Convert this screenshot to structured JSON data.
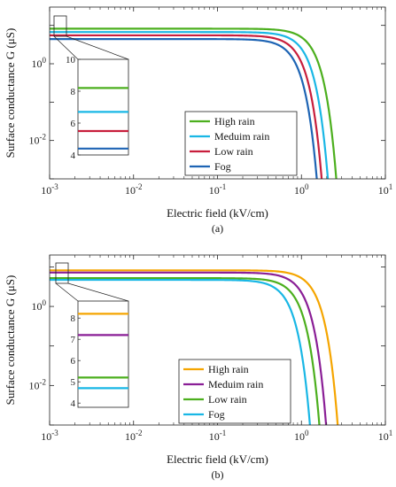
{
  "chart_data": [
    {
      "type": "line",
      "panel_label": "(a)",
      "xlabel": "Electric field (kV/cm)",
      "ylabel": "Surface conductance G (μS)",
      "xscale": "log",
      "yscale": "log",
      "xlim": [
        0.001,
        10
      ],
      "ylim": [
        0.001,
        30
      ],
      "x_ticks": [
        0.001,
        0.01,
        0.1,
        1,
        10
      ],
      "x_tick_labels": [
        [
          "10",
          "-3"
        ],
        [
          "10",
          "-2"
        ],
        [
          "10",
          "-1"
        ],
        [
          "10",
          "0"
        ],
        [
          "10",
          "1"
        ]
      ],
      "y_ticks": [
        0.01,
        1
      ],
      "y_tick_labels": [
        [
          "10",
          "-2"
        ],
        [
          "10",
          "0"
        ]
      ],
      "legend_position": "bottom-right",
      "series": [
        {
          "name": "High rain",
          "color": "#4caf1e",
          "g0": 8.2,
          "knee": 1.25,
          "exp": 3
        },
        {
          "name": "Meduim rain",
          "color": "#19b7e5",
          "g0": 6.7,
          "knee": 1.0,
          "exp": 3
        },
        {
          "name": "Low rain",
          "color": "#c81e3c",
          "g0": 5.5,
          "knee": 0.85,
          "exp": 3
        },
        {
          "name": "Fog",
          "color": "#1e64b4",
          "g0": 4.4,
          "knee": 0.75,
          "exp": 3
        }
      ],
      "inset": {
        "ylim": [
          4,
          10
        ],
        "y_ticks": [
          4,
          6,
          8,
          10
        ],
        "y_tick_labels": [
          "4",
          "6",
          "8",
          "10"
        ],
        "values": [
          8.2,
          6.7,
          5.5,
          4.4
        ]
      }
    },
    {
      "type": "line",
      "panel_label": "(b)",
      "xlabel": "Electric field (kV/cm)",
      "ylabel": "Surface conductance G (μS)",
      "xscale": "log",
      "yscale": "log",
      "xlim": [
        0.001,
        10
      ],
      "ylim": [
        0.001,
        20
      ],
      "x_ticks": [
        0.001,
        0.01,
        0.1,
        1,
        10
      ],
      "x_tick_labels": [
        [
          "10",
          "-3"
        ],
        [
          "10",
          "-2"
        ],
        [
          "10",
          "-1"
        ],
        [
          "10",
          "0"
        ],
        [
          "10",
          "1"
        ]
      ],
      "y_ticks": [
        0.01,
        1
      ],
      "y_tick_labels": [
        [
          "10",
          "-2"
        ],
        [
          "10",
          "0"
        ]
      ],
      "legend_position": "bottom-right",
      "series": [
        {
          "name": "High rain",
          "color": "#f5a500",
          "g0": 8.2,
          "knee": 1.3,
          "exp": 3
        },
        {
          "name": "Meduim rain",
          "color": "#8a1e96",
          "g0": 7.2,
          "knee": 0.95,
          "exp": 3
        },
        {
          "name": "Low rain",
          "color": "#4caf1e",
          "g0": 5.2,
          "knee": 0.8,
          "exp": 3
        },
        {
          "name": "Fog",
          "color": "#19b7e5",
          "g0": 4.7,
          "knee": 0.62,
          "exp": 3
        }
      ],
      "inset": {
        "ylim": [
          3.8,
          8.8
        ],
        "y_ticks": [
          4,
          5,
          6,
          7,
          8
        ],
        "y_tick_labels": [
          "4",
          "5",
          "6",
          "7",
          "8"
        ],
        "values": [
          8.2,
          7.2,
          5.2,
          4.7
        ]
      }
    }
  ]
}
